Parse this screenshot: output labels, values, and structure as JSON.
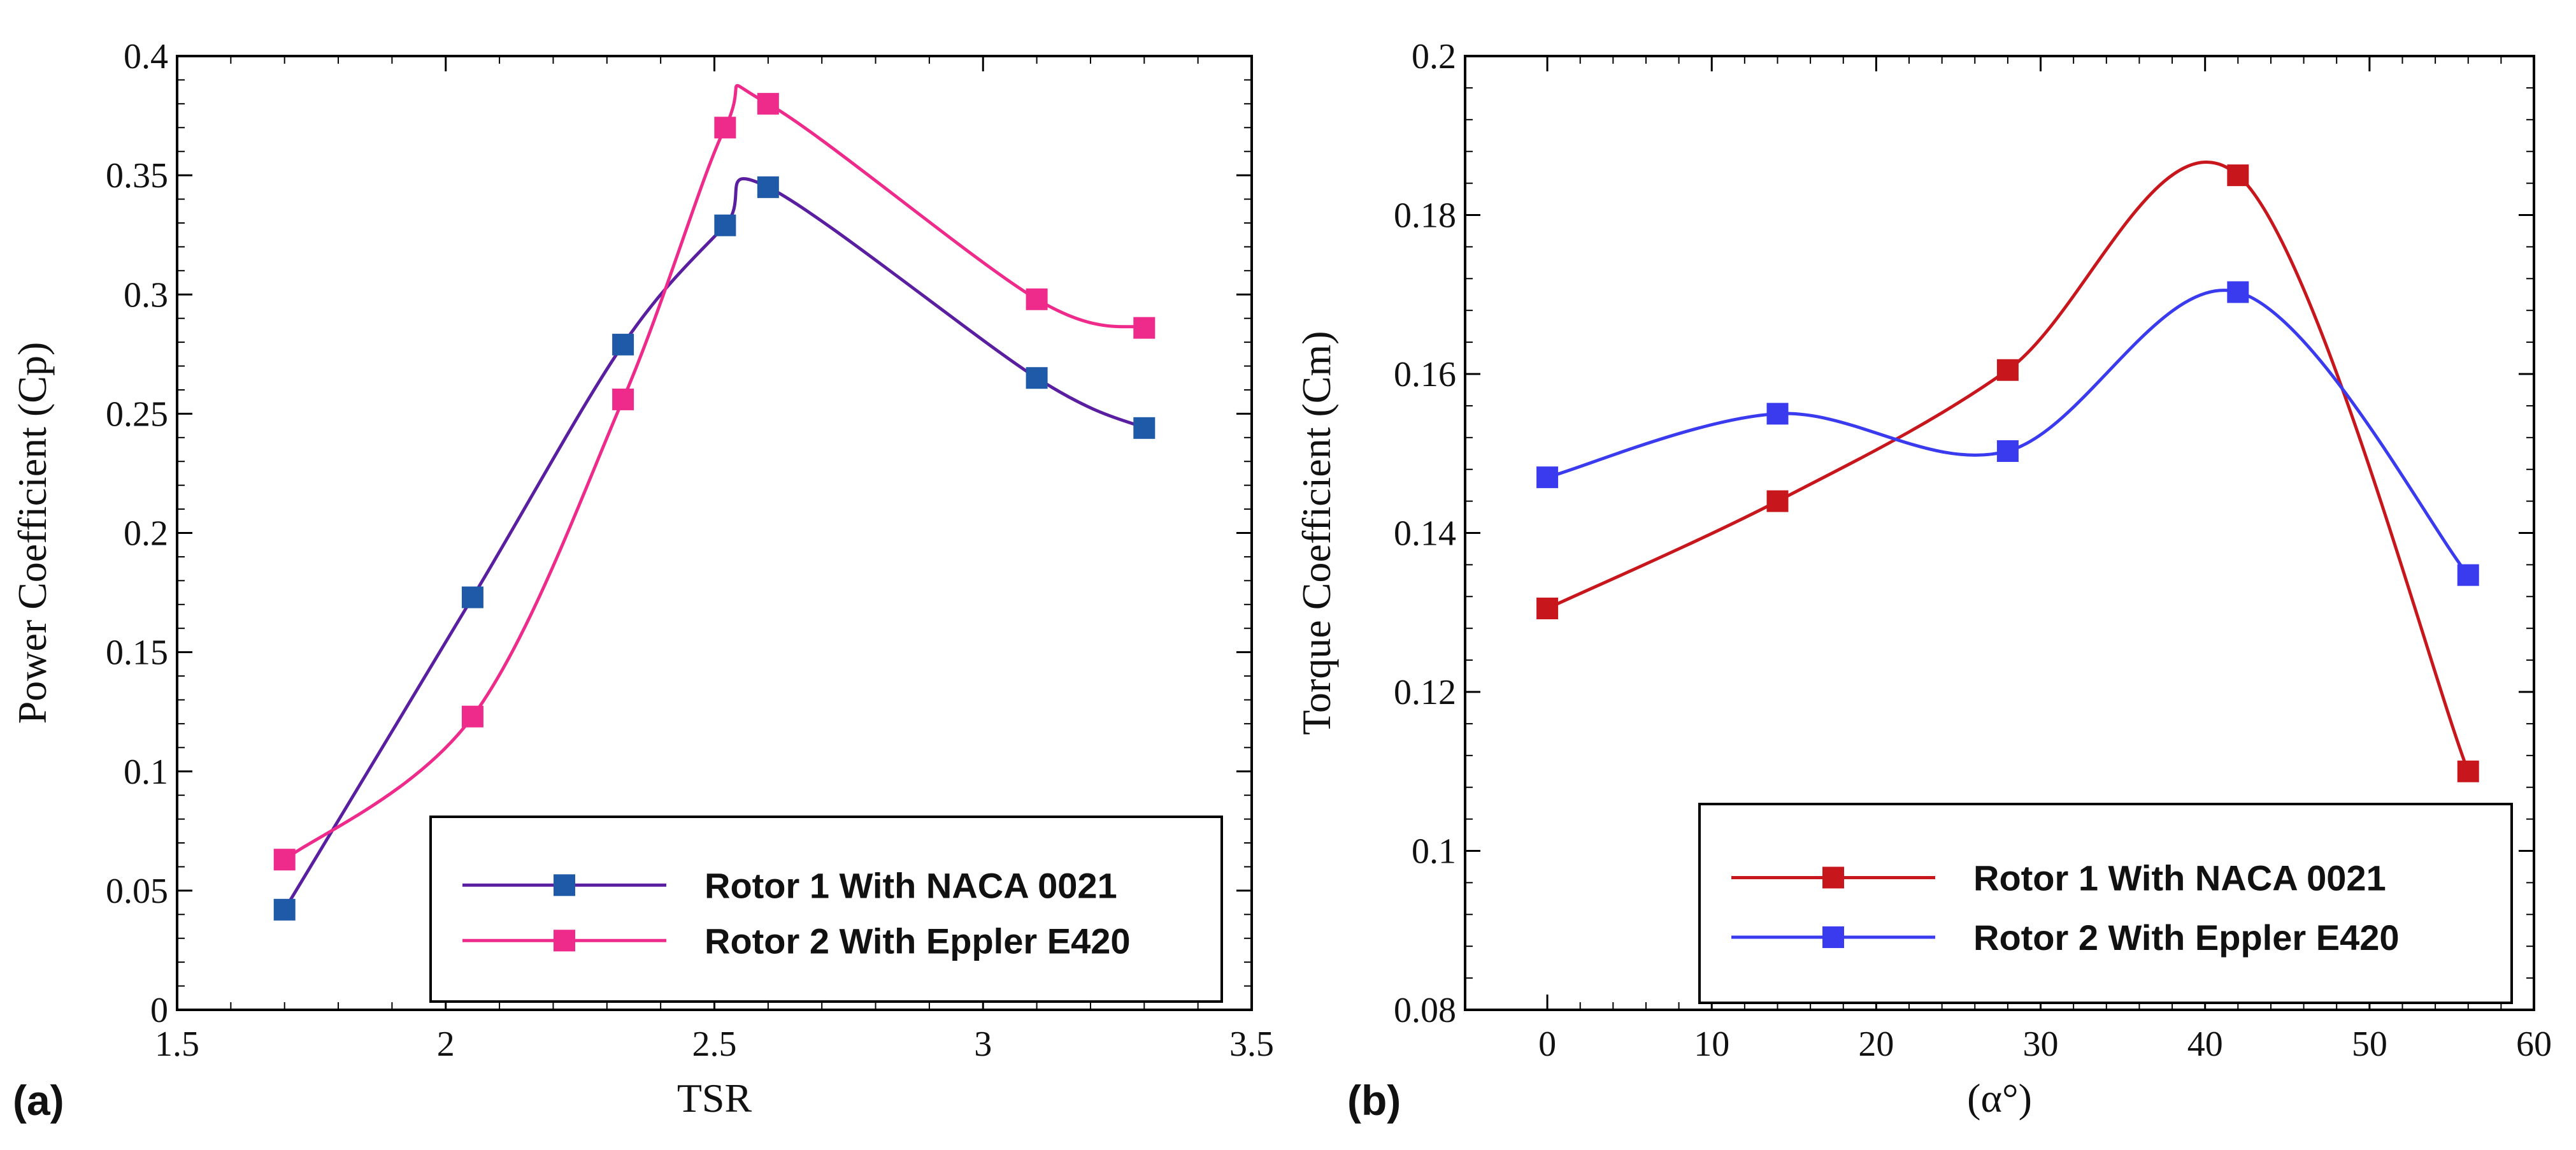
{
  "chart_data": [
    {
      "type": "line",
      "panel_label": "(a)",
      "xlabel": "TSR",
      "ylabel": "Power Coefficient (Cp)",
      "xlim": [
        1.5,
        3.5
      ],
      "ylim": [
        0,
        0.4
      ],
      "xticks": [
        1.5,
        2,
        2.5,
        3,
        3.5
      ],
      "xtick_labels": [
        "1.5",
        "2",
        "2.5",
        "3",
        "3.5"
      ],
      "yticks": [
        0,
        0.05,
        0.1,
        0.15,
        0.2,
        0.25,
        0.3,
        0.35,
        0.4
      ],
      "ytick_labels": [
        "0",
        "0.05",
        "0.1",
        "0.15",
        "0.2",
        "0.25",
        "0.3",
        "0.35",
        "0.4"
      ],
      "legend_position": "bottom-right",
      "series": [
        {
          "name": "Rotor 1 With NACA 0021",
          "line_color": "#5a1fa0",
          "marker_color": "#1f5aa8",
          "x": [
            1.7,
            2.05,
            2.33,
            2.52,
            2.6,
            3.1,
            3.3
          ],
          "y": [
            0.042,
            0.173,
            0.279,
            0.329,
            0.345,
            0.265,
            0.244
          ]
        },
        {
          "name": "Rotor 2 With Eppler E420",
          "line_color": "#ee2a8a",
          "marker_color": "#ee2a8a",
          "x": [
            1.7,
            2.05,
            2.33,
            2.52,
            2.6,
            3.1,
            3.3
          ],
          "y": [
            0.063,
            0.123,
            0.256,
            0.37,
            0.38,
            0.298,
            0.286
          ]
        }
      ]
    },
    {
      "type": "line",
      "panel_label": "(b)",
      "xlabel": "(α°)",
      "ylabel": "Torque Coefficient (Cm)",
      "xlim": [
        -5,
        60
      ],
      "ylim": [
        0.08,
        0.2
      ],
      "xticks": [
        0,
        10,
        20,
        30,
        40,
        50,
        60
      ],
      "xtick_labels": [
        "0",
        "10",
        "20",
        "30",
        "40",
        "50",
        "60"
      ],
      "yticks": [
        0.08,
        0.1,
        0.12,
        0.14,
        0.16,
        0.18,
        0.2
      ],
      "ytick_labels": [
        "0.08",
        "0.1",
        "0.12",
        "0.14",
        "0.16",
        "0.18",
        "0.2"
      ],
      "legend_position": "bottom-right",
      "series": [
        {
          "name": "Rotor 1 With NACA 0021",
          "line_color": "#c8161d",
          "marker_color": "#c8161d",
          "x": [
            0,
            14,
            28,
            42,
            56
          ],
          "y": [
            0.1305,
            0.144,
            0.1605,
            0.185,
            0.11
          ]
        },
        {
          "name": "Rotor 2 With Eppler E420",
          "line_color": "#3a3aee",
          "marker_color": "#3a3aee",
          "x": [
            0,
            14,
            28,
            42,
            56
          ],
          "y": [
            0.147,
            0.155,
            0.1503,
            0.1703,
            0.1347
          ]
        }
      ]
    }
  ]
}
